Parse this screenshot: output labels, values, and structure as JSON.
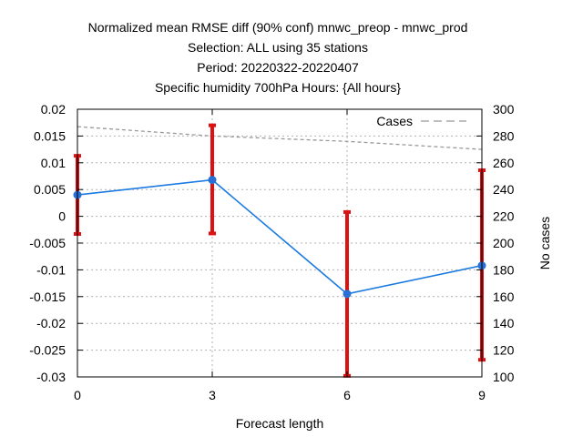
{
  "chart_data": {
    "type": "line",
    "title_lines": [
      "Normalized mean RMSE diff (90% conf) mnwc_preop - mnwc_prod",
      "Selection: ALL using    35 stations",
      "Period: 20220322-20220407",
      "Specific humidity 700hPa   Hours: {All hours}"
    ],
    "xlabel": "Forecast length",
    "ylabel": "",
    "y2label": "No cases",
    "xlim": [
      0,
      9
    ],
    "ylim": [
      -0.03,
      0.02
    ],
    "y2lim": [
      100,
      300
    ],
    "x_ticks": [
      0,
      3,
      6,
      9
    ],
    "y_ticks": [
      0.02,
      0.015,
      0.01,
      0.005,
      0,
      -0.005,
      -0.01,
      -0.015,
      -0.02,
      -0.025,
      -0.03
    ],
    "y_tick_labels": [
      "0.02",
      "0.015",
      "0.01",
      "0.005",
      "0",
      "-0.005",
      "-0.01",
      "-0.015",
      "-0.02",
      "-0.025",
      "-0.03"
    ],
    "y2_ticks": [
      300,
      280,
      260,
      240,
      220,
      200,
      180,
      160,
      140,
      120,
      100
    ],
    "grid": true,
    "legend_position": "top-right",
    "series": [
      {
        "kind": "line-errorbar",
        "x": [
          0,
          3,
          6,
          9
        ],
        "values": [
          0.004,
          0.0068,
          -0.0145,
          -0.0092
        ],
        "err_low": [
          -0.0033,
          -0.0032,
          -0.0298,
          -0.0268
        ],
        "err_high": [
          0.0113,
          0.017,
          0.0008,
          0.0086
        ],
        "color": "#1a7ae0",
        "errorbar_color": "#dd1111"
      },
      {
        "name": "Cases",
        "kind": "dashed-line",
        "axis": "y2",
        "x": [
          0,
          3,
          6,
          9
        ],
        "values": [
          287,
          280,
          276,
          270
        ],
        "color": "#999999"
      }
    ]
  }
}
